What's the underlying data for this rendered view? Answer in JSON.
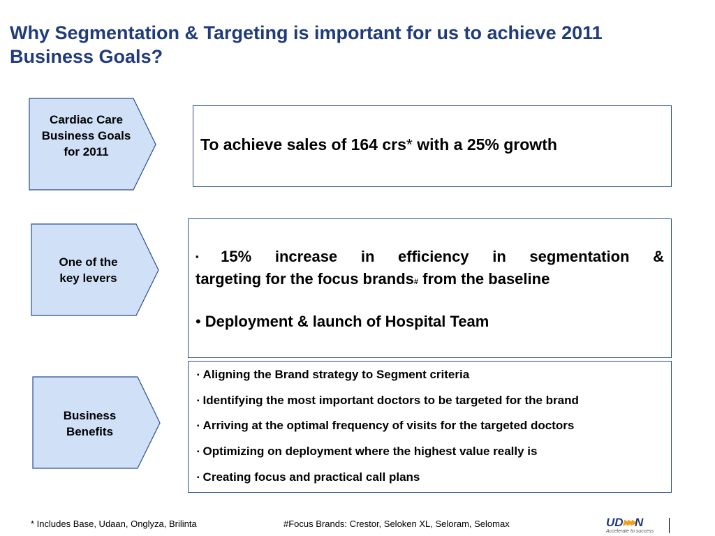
{
  "slide": {
    "title_line1": "Why Segmentation & Targeting is important for us to achieve 2011",
    "title_line2": "Business Goals?"
  },
  "rows": {
    "goals": {
      "label_lines": [
        "Cardiac Care",
        "Business Goals",
        "for 2011"
      ],
      "text_before": "To achieve sales of 164 crs",
      "text_star": "*",
      "text_after": " with a 25% growth"
    },
    "levers": {
      "label_lines": [
        "One of the",
        "key levers"
      ],
      "item1_line1": "15% increase in efficiency in segmentation &",
      "item1_line2_before": "targeting for the focus brands",
      "item1_hash": "#",
      "item1_line2_after": " from the baseline",
      "item2_bullet": "•",
      "item2": "Deployment & launch of Hospital Team"
    },
    "benefits": {
      "label_lines": [
        "Business",
        "Benefits"
      ],
      "items": [
        "Aligning the Brand strategy to Segment criteria",
        "Identifying the most important doctors to be targeted for the brand",
        "Arriving at the optimal frequency of visits for the targeted doctors",
        "Optimizing on deployment where the highest value really is",
        "Creating focus and practical call plans"
      ]
    }
  },
  "bullet_square": "▪",
  "footer": {
    "footnote_left": "* Includes Base, Udaan, Onglyza, Brilinta",
    "footnote_right": "#Focus Brands: Crestor, Seloken XL, Seloram, Selomax",
    "logo_text_left": "UD",
    "logo_arrows": "▶▶▶",
    "logo_text_right": "N",
    "logo_tagline": "Accelerate to success"
  },
  "colors": {
    "title": "#1f3b7a",
    "shape_fill": "#cfe0f7",
    "shape_border": "#2a4d8f",
    "logo_arrows": "#f0a020"
  }
}
